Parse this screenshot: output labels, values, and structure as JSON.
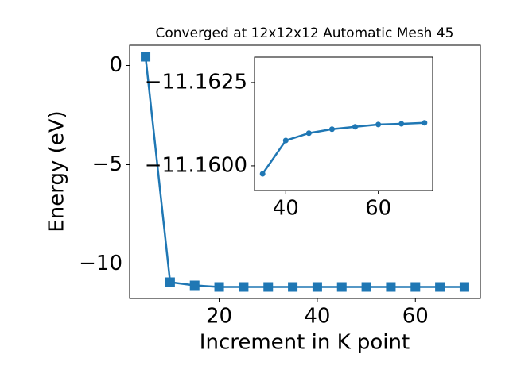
{
  "chart_data": [
    {
      "type": "line",
      "title": "Converged at 12x12x12 Automatic Mesh 45",
      "x_label": "Increment in K point",
      "y_label": "Energy (eV)",
      "x": [
        5,
        10,
        15,
        20,
        25,
        30,
        35,
        40,
        45,
        50,
        55,
        60,
        65,
        70
      ],
      "series": [
        {
          "color": "#1f77b4",
          "marker": "square",
          "values": [
            0.44,
            -10.92,
            -11.08,
            -11.16,
            -11.16,
            -11.16,
            -11.16,
            -11.16,
            -11.16,
            -11.16,
            -11.16,
            -11.16,
            -11.16,
            -11.16
          ]
        }
      ],
      "xlim": [
        1.75,
        73.25
      ],
      "ylim": [
        -11.74,
        1.02
      ],
      "xticks": [
        20,
        40,
        60
      ],
      "yticks": [
        {
          "value": 0,
          "label": "0"
        },
        {
          "value": -5,
          "label": "−5"
        },
        {
          "value": -10,
          "label": "−10"
        }
      ]
    },
    {
      "type": "line",
      "x": [
        35,
        40,
        45,
        50,
        55,
        60,
        65,
        70
      ],
      "series": [
        {
          "color": "#1f77b4",
          "marker": "circle",
          "values": [
            -11.15976,
            -11.16076,
            -11.16098,
            -11.1611,
            -11.16117,
            -11.16124,
            -11.16126,
            -11.16129
          ]
        }
      ],
      "xlim": [
        33.25,
        71.75
      ],
      "ylim": [
        -11.15926,
        -11.16326
      ],
      "xticks": [
        40,
        60
      ],
      "yticks": [
        {
          "value": -11.1625,
          "label": "−11.1625"
        },
        {
          "value": -11.16,
          "label": "−11.1600"
        }
      ]
    }
  ]
}
